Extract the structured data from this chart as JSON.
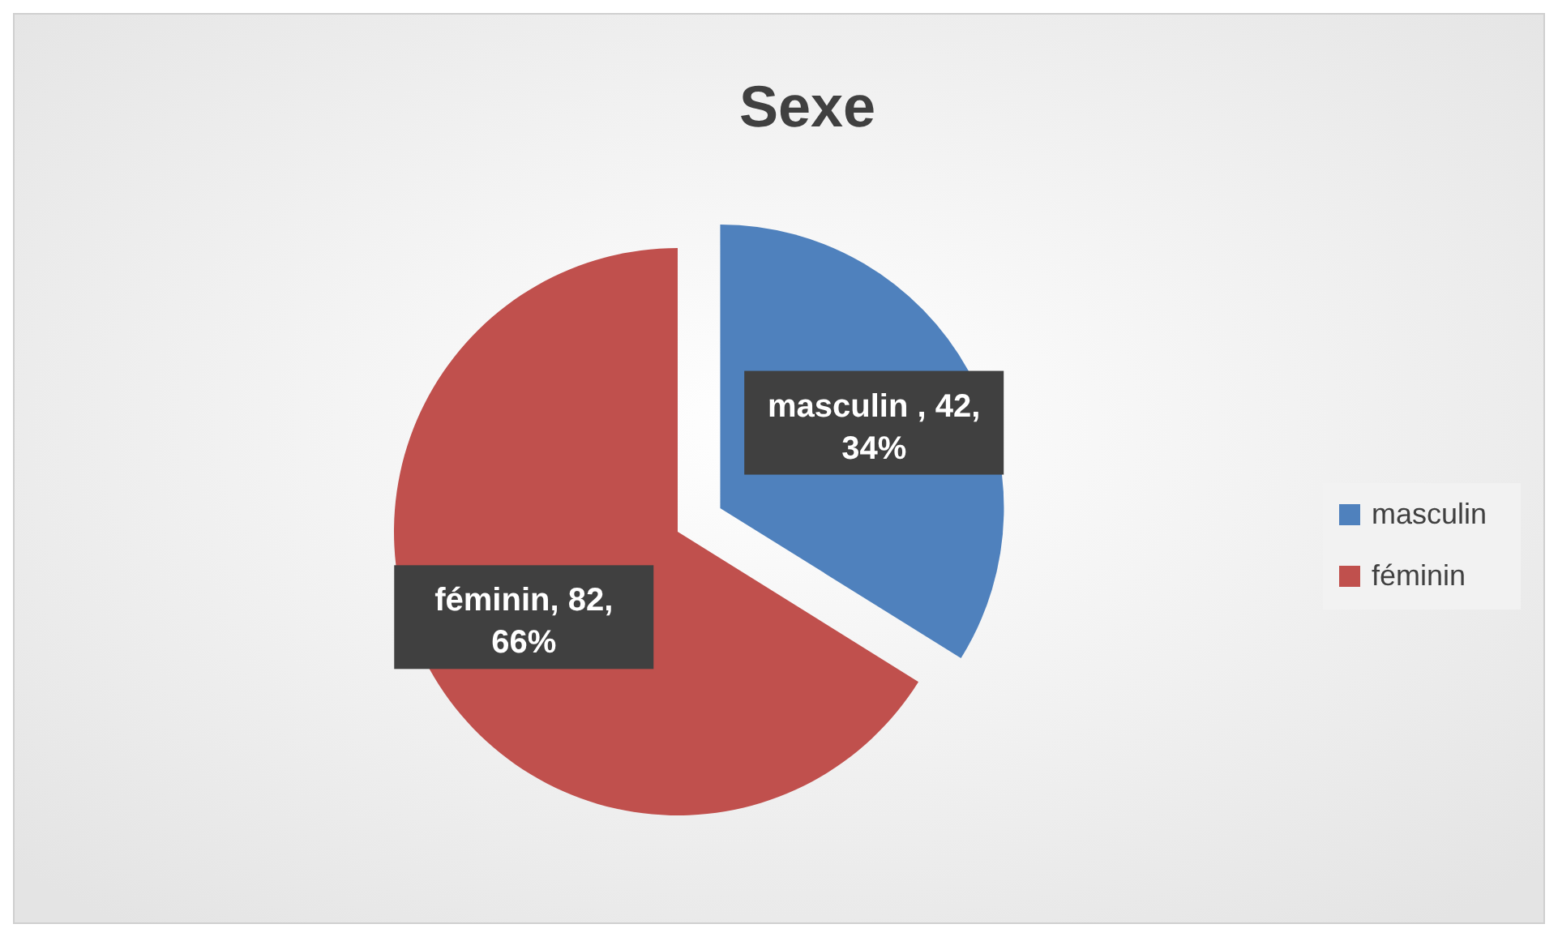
{
  "chart_data": {
    "type": "pie",
    "title": "Sexe",
    "categories": [
      "masculin",
      "féminin"
    ],
    "values": [
      42,
      82
    ],
    "colors": [
      "#4f81bd",
      "#c0504d"
    ],
    "value_labels": [
      "masculin , 42, 34%",
      "féminin, 82, 66%"
    ],
    "legend": "right"
  }
}
